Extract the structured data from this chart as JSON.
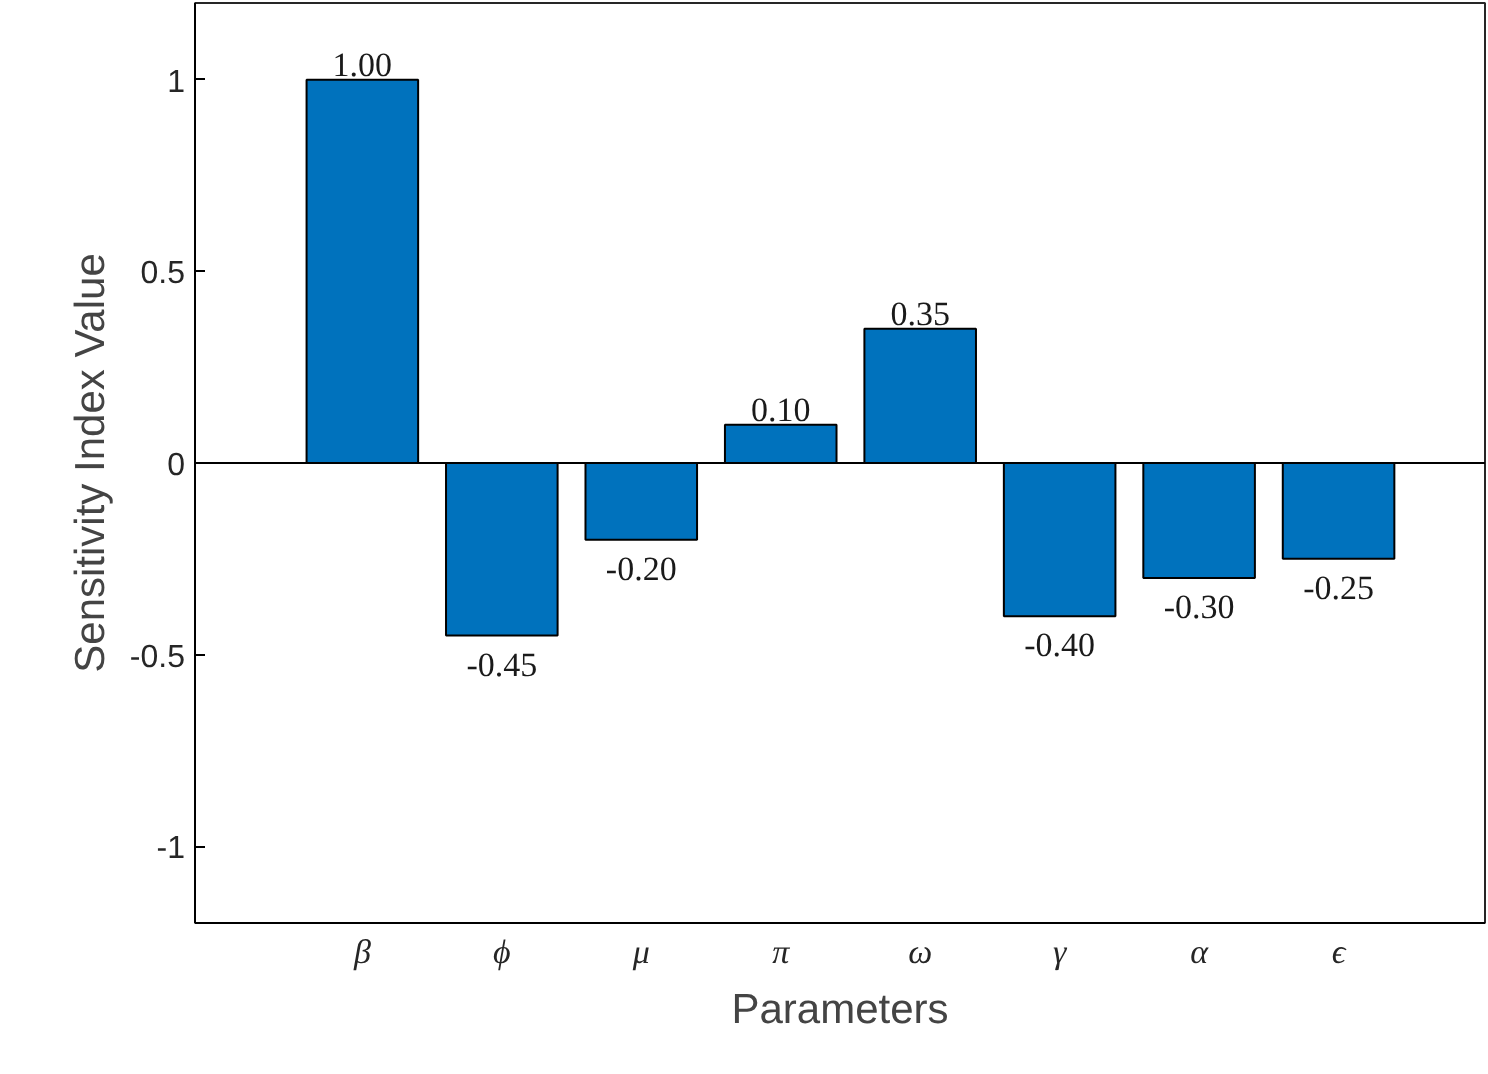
{
  "chart_data": {
    "type": "bar",
    "xlabel": "Parameters",
    "ylabel": "Sensitivity Index Value",
    "categories": [
      "β",
      "ϕ",
      "μ",
      "π",
      "ω",
      "γ",
      "α",
      "ϵ"
    ],
    "values": [
      1.0,
      -0.45,
      -0.2,
      0.1,
      0.35,
      -0.4,
      -0.3,
      -0.25
    ],
    "value_labels": [
      "1.00",
      "-0.45",
      "-0.20",
      "0.10",
      "0.35",
      "-0.40",
      "-0.30",
      "-0.25"
    ],
    "color": "#0072bd",
    "ylim": [
      -1.2,
      1.2
    ],
    "yticks": [
      -1,
      -0.5,
      0,
      0.5,
      1
    ],
    "grid": false,
    "ref_lines": [
      {
        "axis": "y",
        "value": 0,
        "color": "#000000"
      }
    ]
  }
}
